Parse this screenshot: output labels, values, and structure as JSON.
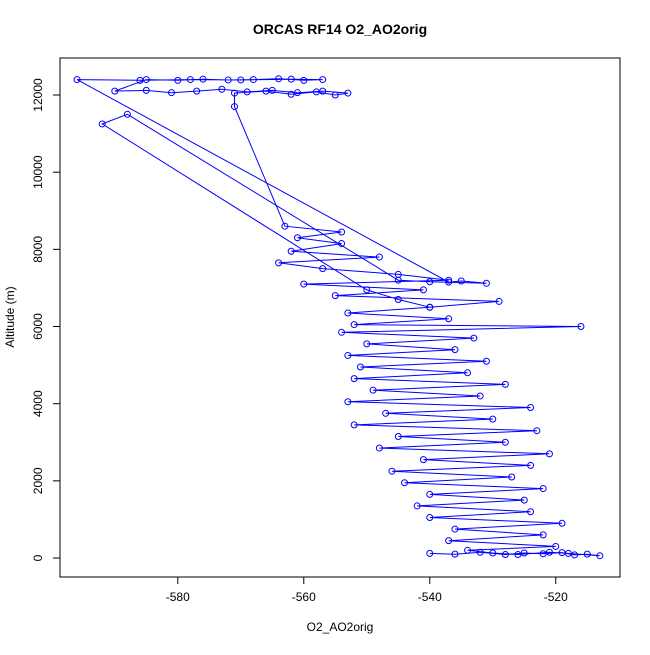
{
  "chart_data": {
    "type": "line",
    "marker": "circle",
    "title": "ORCAS RF14 O2_AO2orig",
    "x_label": "O2_AO2orig",
    "y_label": "Altitude (m)",
    "color": "#0000ff",
    "x": [
      -540,
      -536,
      -532,
      -528,
      -525,
      -522,
      -519,
      -517,
      -515,
      -513,
      -518,
      -521,
      -526,
      -530,
      -534,
      -520,
      -537,
      -522,
      -536,
      -519,
      -540,
      -524,
      -542,
      -525,
      -540,
      -522,
      -544,
      -527,
      -546,
      -524,
      -541,
      -521,
      -548,
      -528,
      -545,
      -523,
      -552,
      -530,
      -547,
      -524,
      -553,
      -532,
      -549,
      -528,
      -552,
      -534,
      -551,
      -531,
      -553,
      -536,
      -550,
      -533,
      -554,
      -516,
      -552,
      -537,
      -553,
      -540,
      -529,
      -555,
      -541,
      -560,
      -537,
      -545,
      -557,
      -564,
      -548,
      -562,
      -554,
      -561,
      -554,
      -563,
      -571,
      -571,
      -566,
      -562,
      -558,
      -555,
      -553,
      -557,
      -561,
      -565,
      -569,
      -573,
      -577,
      -581,
      -585,
      -590,
      -585,
      -580,
      -576,
      -572,
      -568,
      -564,
      -560,
      -557,
      -562,
      -570,
      -578,
      -586,
      -596,
      -537,
      -535,
      -531,
      -540,
      -545,
      -588,
      -592,
      -550,
      -545,
      -540
    ],
    "values": [
      120,
      100,
      150,
      90,
      130,
      110,
      140,
      80,
      100,
      60,
      120,
      150,
      90,
      130,
      200,
      300,
      450,
      600,
      750,
      900,
      1050,
      1200,
      1350,
      1500,
      1650,
      1800,
      1950,
      2100,
      2250,
      2400,
      2550,
      2700,
      2850,
      3000,
      3150,
      3300,
      3450,
      3600,
      3750,
      3900,
      4050,
      4200,
      4350,
      4500,
      4650,
      4800,
      4950,
      5100,
      5250,
      5400,
      5550,
      5700,
      5850,
      6000,
      6050,
      6200,
      6350,
      6500,
      6650,
      6800,
      6950,
      7100,
      7200,
      7350,
      7500,
      7650,
      7800,
      7950,
      8150,
      8300,
      8450,
      8600,
      11700,
      12050,
      12100,
      12020,
      12080,
      12000,
      12050,
      12100,
      12060,
      12120,
      12080,
      12150,
      12100,
      12060,
      12120,
      12100,
      12400,
      12380,
      12410,
      12390,
      12400,
      12420,
      12380,
      12400,
      12410,
      12390,
      12400,
      12380,
      12400,
      7150,
      7180,
      7120,
      7160,
      7200,
      11500,
      11250,
      6950,
      6700,
      6500
    ],
    "xlim": [
      -598.7,
      -509.8
    ],
    "ylim": [
      -492,
      12959
    ],
    "xticks": [
      -580,
      -560,
      -540,
      -520
    ],
    "yticks": [
      0,
      2000,
      4000,
      6000,
      8000,
      10000,
      12000
    ]
  }
}
